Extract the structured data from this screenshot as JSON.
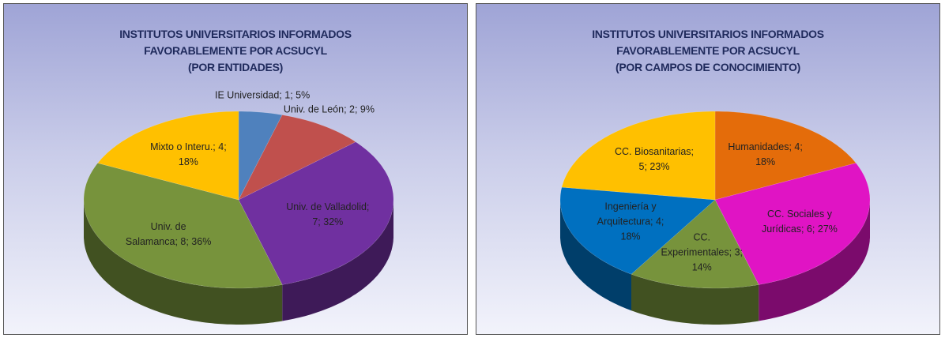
{
  "chart_data": [
    {
      "type": "pie",
      "title": "INSTITUTOS UNIVERSITARIOS INFORMADOS\nFAVORABLEMENTE POR ACSUCYL\n(POR ENTIDADES)",
      "values": [
        1,
        2,
        7,
        8,
        4
      ],
      "value_labels": [
        "IE Universidad; 1; 5%",
        "Univ. de León; 2; 9%",
        "Univ. de Valladolid; 7; 32%",
        "Univ. de Salamanca; 8; 36%",
        "Mixto o Interu.; 4; 18%"
      ],
      "colors": [
        "#4f81bd",
        "#c0504d",
        "#7030a0",
        "#77933c",
        "#ffc000"
      ]
    },
    {
      "type": "pie",
      "title": "INSTITUTOS UNIVERSITARIOS INFORMADOS\nFAVORABLEMENTE POR ACSUCYL\n(POR CAMPOS DE CONOCIMIENTO)",
      "values": [
        4,
        6,
        3,
        4,
        5
      ],
      "value_labels": [
        "Humanidades; 4; 18%",
        "CC. Sociales y Jurídicas; 6; 27%",
        "CC. Experimentales; 3; 14%",
        "Ingeniería y Arquitectura; 4; 18%",
        "CC. Biosanitarias; 5; 23%"
      ],
      "colors": [
        "#e46c0a",
        "#e014c4",
        "#77933c",
        "#0070c0",
        "#ffc000"
      ]
    }
  ]
}
